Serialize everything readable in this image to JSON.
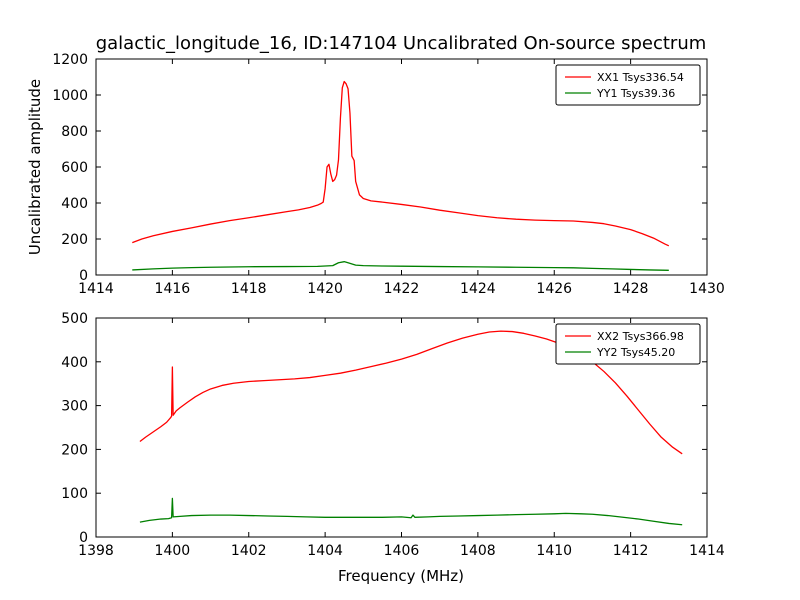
{
  "figure": {
    "title": "galactic_longitude_16, ID:147104 Uncalibrated On-source spectrum",
    "xlabel": "Frequency (MHz)",
    "ylabel": "Uncalibrated amplitude"
  },
  "colors": {
    "xx": "#ff0000",
    "yy": "#008000",
    "frame": "#000000",
    "background": "#ffffff"
  },
  "chart_data": [
    {
      "type": "line",
      "subplot": "top",
      "xlim": [
        1414,
        1430
      ],
      "ylim": [
        0,
        1200
      ],
      "xticks": [
        1414,
        1416,
        1418,
        1420,
        1422,
        1424,
        1426,
        1428,
        1430
      ],
      "yticks": [
        0,
        200,
        400,
        600,
        800,
        1000,
        1200
      ],
      "grid": false,
      "legend_position": "upper right",
      "series": [
        {
          "name": "XX1 Tsys336.54",
          "color": "#ff0000",
          "points": [
            [
              1414.95,
              180
            ],
            [
              1415.2,
              200
            ],
            [
              1415.5,
              218
            ],
            [
              1416,
              242
            ],
            [
              1416.5,
              262
            ],
            [
              1417,
              283
            ],
            [
              1417.5,
              302
            ],
            [
              1418,
              318
            ],
            [
              1418.5,
              335
            ],
            [
              1419,
              352
            ],
            [
              1419.3,
              362
            ],
            [
              1419.6,
              375
            ],
            [
              1419.8,
              388
            ],
            [
              1419.9,
              398
            ],
            [
              1419.95,
              405
            ],
            [
              1420.0,
              480
            ],
            [
              1420.05,
              600
            ],
            [
              1420.1,
              615
            ],
            [
              1420.15,
              560
            ],
            [
              1420.2,
              520
            ],
            [
              1420.25,
              530
            ],
            [
              1420.3,
              555
            ],
            [
              1420.35,
              640
            ],
            [
              1420.4,
              870
            ],
            [
              1420.45,
              1040
            ],
            [
              1420.5,
              1075
            ],
            [
              1420.55,
              1062
            ],
            [
              1420.6,
              1035
            ],
            [
              1420.65,
              900
            ],
            [
              1420.7,
              660
            ],
            [
              1420.73,
              648
            ],
            [
              1420.76,
              636
            ],
            [
              1420.8,
              520
            ],
            [
              1420.9,
              445
            ],
            [
              1421,
              425
            ],
            [
              1421.2,
              412
            ],
            [
              1421.5,
              405
            ],
            [
              1422,
              392
            ],
            [
              1422.5,
              378
            ],
            [
              1423,
              360
            ],
            [
              1423.5,
              345
            ],
            [
              1424,
              330
            ],
            [
              1424.5,
              318
            ],
            [
              1425,
              310
            ],
            [
              1425.5,
              305
            ],
            [
              1426,
              302
            ],
            [
              1426.5,
              300
            ],
            [
              1427,
              292
            ],
            [
              1427.3,
              285
            ],
            [
              1427.6,
              272
            ],
            [
              1428,
              252
            ],
            [
              1428.3,
              230
            ],
            [
              1428.6,
              205
            ],
            [
              1428.9,
              172
            ],
            [
              1429.0,
              162
            ]
          ]
        },
        {
          "name": "YY1 Tsys39.36",
          "color": "#008000",
          "points": [
            [
              1414.95,
              28
            ],
            [
              1415.5,
              34
            ],
            [
              1416,
              38
            ],
            [
              1416.5,
              41
            ],
            [
              1417,
              43
            ],
            [
              1418,
              46
            ],
            [
              1419,
              47
            ],
            [
              1419.8,
              48
            ],
            [
              1420.2,
              52
            ],
            [
              1420.35,
              68
            ],
            [
              1420.5,
              74
            ],
            [
              1420.6,
              68
            ],
            [
              1420.8,
              55
            ],
            [
              1421,
              52
            ],
            [
              1421.5,
              50
            ],
            [
              1422,
              49
            ],
            [
              1423,
              47
            ],
            [
              1424,
              45
            ],
            [
              1425,
              43
            ],
            [
              1426,
              41
            ],
            [
              1426.5,
              40
            ],
            [
              1427,
              37
            ],
            [
              1427.5,
              34
            ],
            [
              1428,
              31
            ],
            [
              1428.5,
              28
            ],
            [
              1429,
              26
            ]
          ]
        }
      ]
    },
    {
      "type": "line",
      "subplot": "bottom",
      "xlim": [
        1398,
        1414
      ],
      "ylim": [
        0,
        500
      ],
      "xticks": [
        1398,
        1400,
        1402,
        1404,
        1406,
        1408,
        1410,
        1412,
        1414
      ],
      "yticks": [
        0,
        100,
        200,
        300,
        400,
        500
      ],
      "grid": false,
      "legend_position": "upper right",
      "series": [
        {
          "name": "XX2 Tsys366.98",
          "color": "#ff0000",
          "points": [
            [
              1399.15,
              218
            ],
            [
              1399.3,
              228
            ],
            [
              1399.5,
              240
            ],
            [
              1399.7,
              252
            ],
            [
              1399.85,
              262
            ],
            [
              1399.95,
              272
            ],
            [
              1399.98,
              276
            ],
            [
              1400.0,
              388
            ],
            [
              1400.02,
              278
            ],
            [
              1400.1,
              288
            ],
            [
              1400.2,
              295
            ],
            [
              1400.4,
              308
            ],
            [
              1400.6,
              320
            ],
            [
              1400.8,
              330
            ],
            [
              1401,
              338
            ],
            [
              1401.3,
              346
            ],
            [
              1401.6,
              351
            ],
            [
              1402,
              355
            ],
            [
              1402.4,
              357
            ],
            [
              1402.8,
              359
            ],
            [
              1403.2,
              361
            ],
            [
              1403.6,
              364
            ],
            [
              1404,
              369
            ],
            [
              1404.4,
              374
            ],
            [
              1404.8,
              381
            ],
            [
              1405.2,
              389
            ],
            [
              1405.6,
              397
            ],
            [
              1406,
              406
            ],
            [
              1406.4,
              417
            ],
            [
              1406.8,
              430
            ],
            [
              1407.2,
              443
            ],
            [
              1407.6,
              454
            ],
            [
              1408,
              463
            ],
            [
              1408.3,
              468
            ],
            [
              1408.6,
              470
            ],
            [
              1408.9,
              469
            ],
            [
              1409.2,
              465
            ],
            [
              1409.5,
              459
            ],
            [
              1409.8,
              452
            ],
            [
              1410.1,
              443
            ],
            [
              1410.4,
              432
            ],
            [
              1410.7,
              418
            ],
            [
              1411,
              400
            ],
            [
              1411.3,
              378
            ],
            [
              1411.6,
              352
            ],
            [
              1411.9,
              322
            ],
            [
              1412.2,
              290
            ],
            [
              1412.5,
              258
            ],
            [
              1412.8,
              228
            ],
            [
              1413.1,
              205
            ],
            [
              1413.35,
              190
            ]
          ]
        },
        {
          "name": "YY2 Tsys45.20",
          "color": "#008000",
          "points": [
            [
              1399.15,
              34
            ],
            [
              1399.4,
              38
            ],
            [
              1399.7,
              41
            ],
            [
              1399.9,
              42
            ],
            [
              1399.98,
              44
            ],
            [
              1400.0,
              88
            ],
            [
              1400.02,
              46
            ],
            [
              1400.2,
              47
            ],
            [
              1400.5,
              49
            ],
            [
              1401,
              50
            ],
            [
              1401.5,
              50
            ],
            [
              1402,
              49
            ],
            [
              1402.5,
              48
            ],
            [
              1403,
              47
            ],
            [
              1403.5,
              46
            ],
            [
              1404,
              45
            ],
            [
              1404.5,
              45
            ],
            [
              1405,
              45
            ],
            [
              1405.5,
              45
            ],
            [
              1406,
              46
            ],
            [
              1406.25,
              44
            ],
            [
              1406.3,
              50
            ],
            [
              1406.35,
              45
            ],
            [
              1406.7,
              46
            ],
            [
              1407,
              47
            ],
            [
              1407.5,
              48
            ],
            [
              1408,
              49
            ],
            [
              1408.5,
              50
            ],
            [
              1409,
              51
            ],
            [
              1409.5,
              52
            ],
            [
              1410,
              53
            ],
            [
              1410.3,
              54
            ],
            [
              1410.7,
              53
            ],
            [
              1411,
              52
            ],
            [
              1411.4,
              49
            ],
            [
              1411.8,
              45
            ],
            [
              1412.2,
              41
            ],
            [
              1412.6,
              36
            ],
            [
              1413,
              31
            ],
            [
              1413.35,
              28
            ]
          ]
        }
      ]
    }
  ]
}
